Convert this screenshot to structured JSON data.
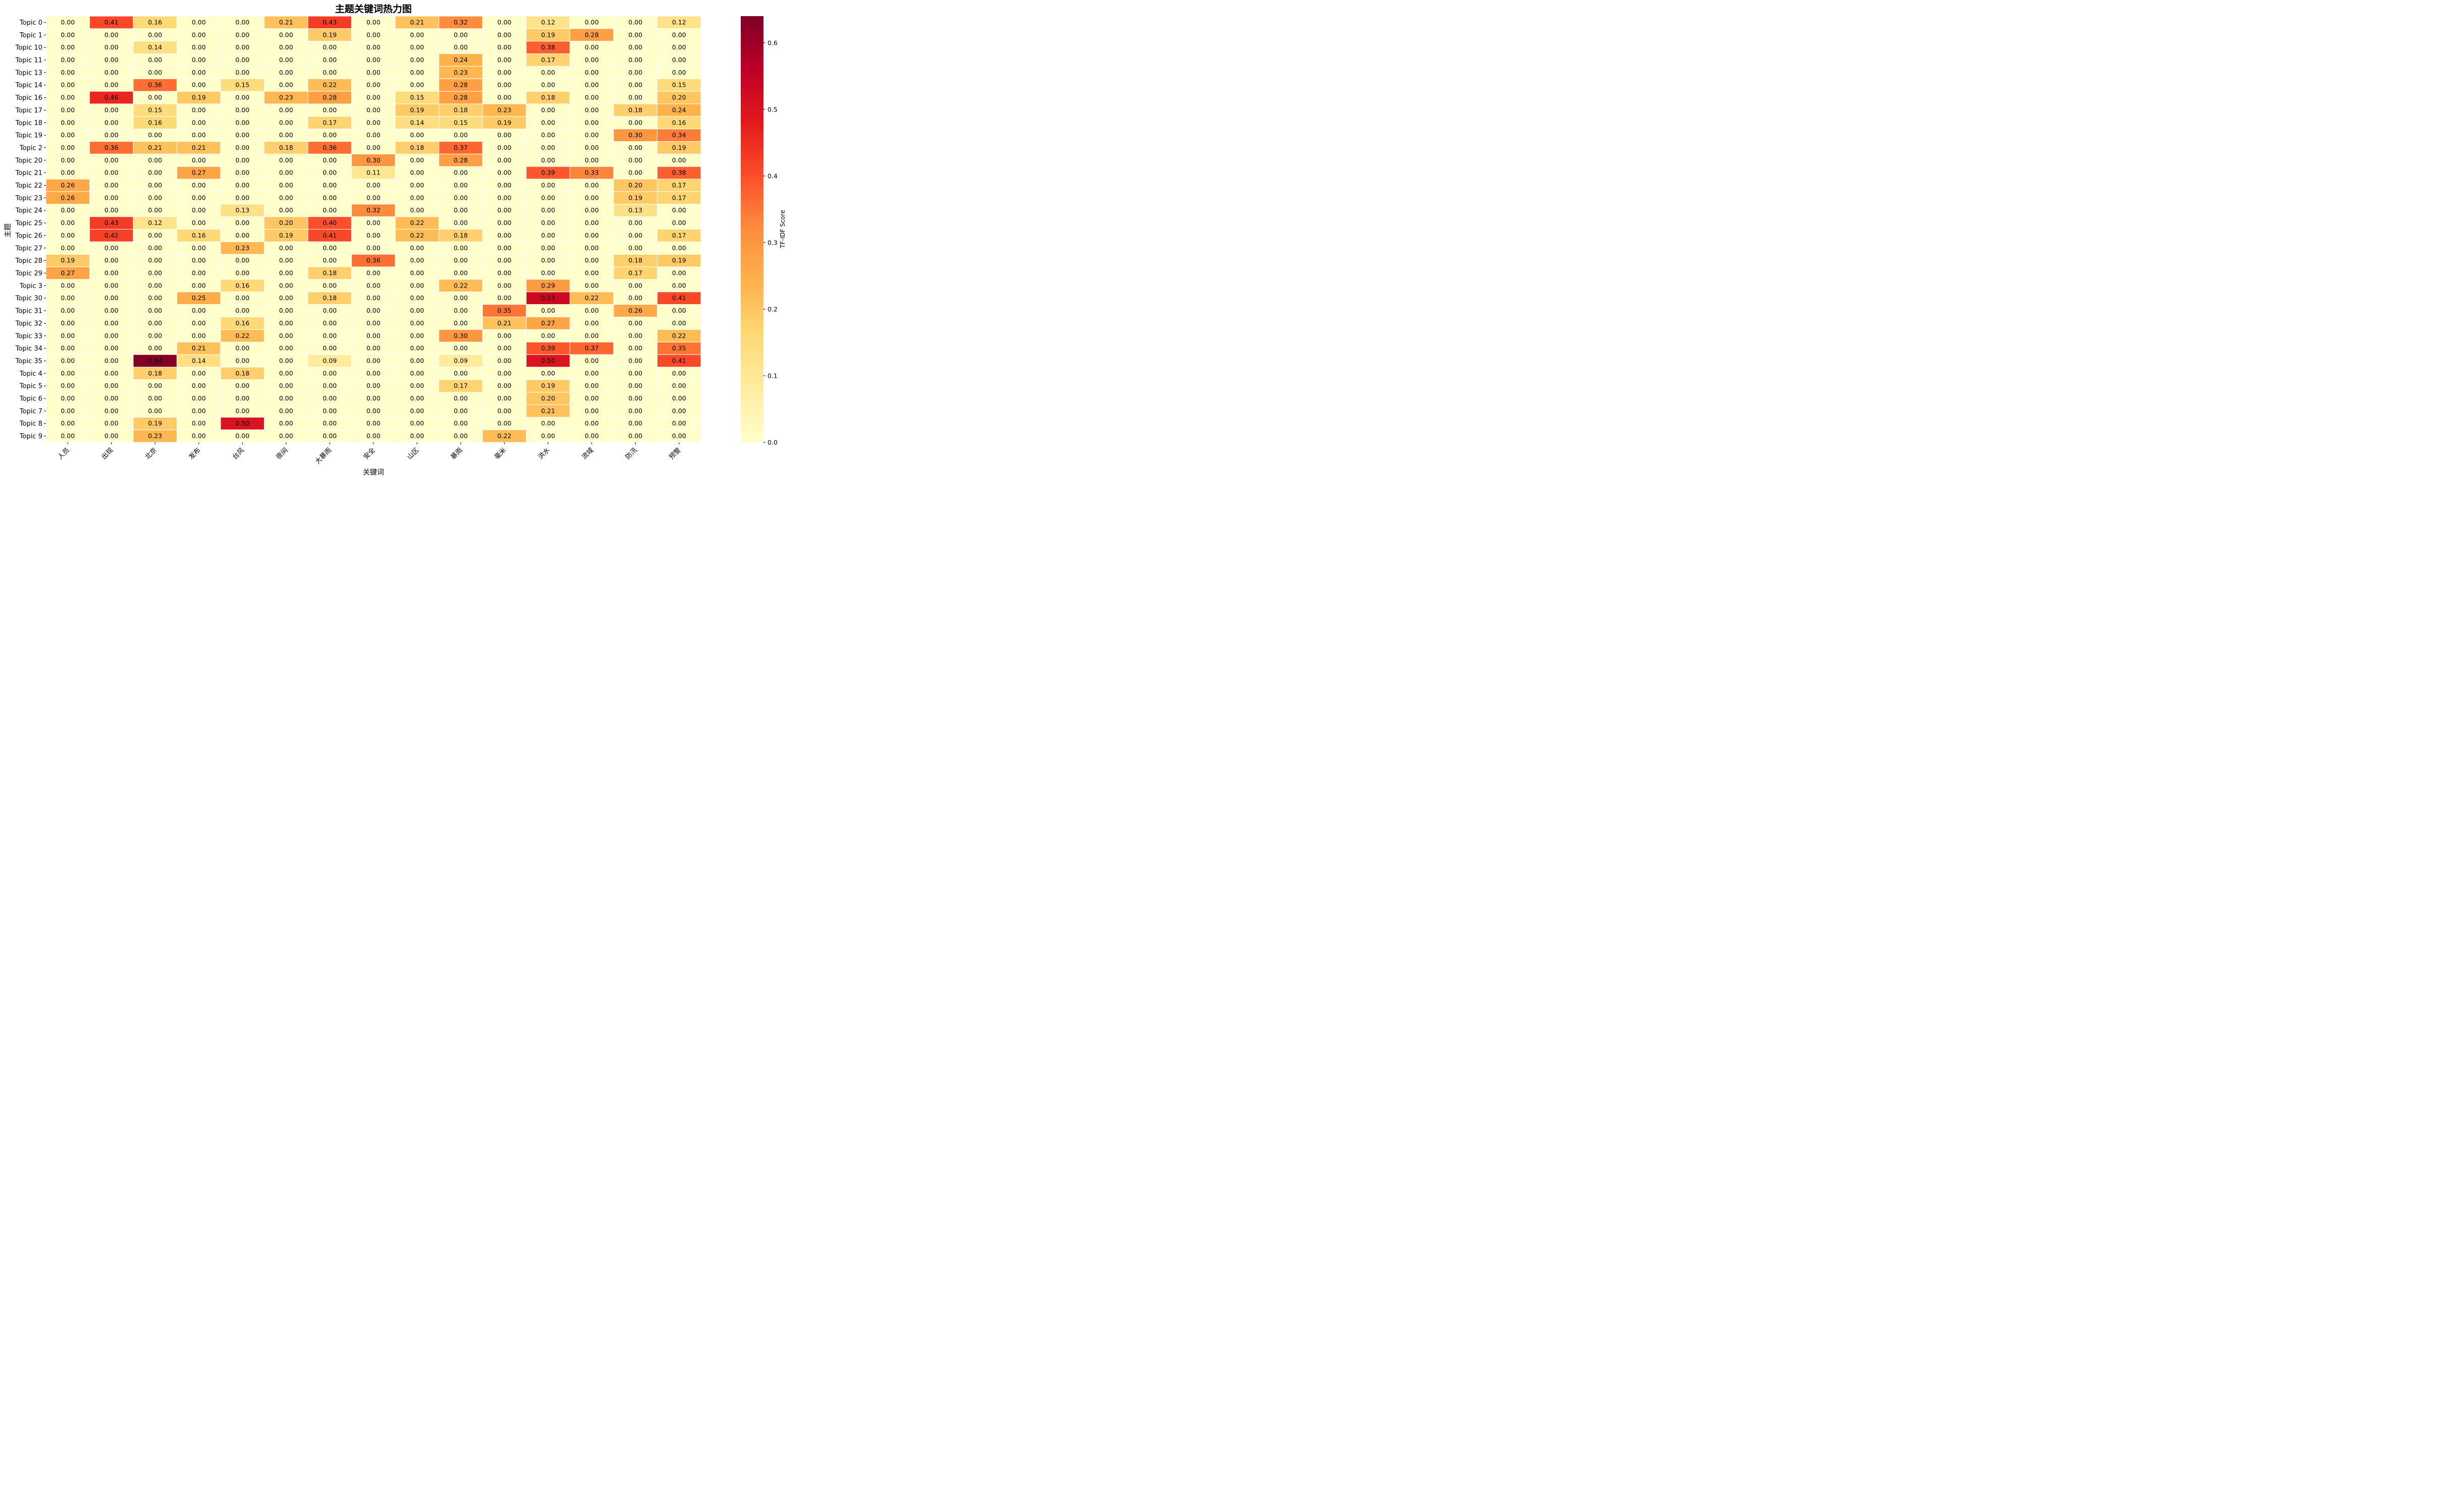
{
  "chart_data": {
    "type": "heatmap",
    "title": "主题关键词热力图",
    "xlabel": "关键词",
    "ylabel": "主题",
    "colorbar_label": "TF-IDF Score",
    "colorbar_ticks": [
      "0.0",
      "0.1",
      "0.2",
      "0.3",
      "0.4",
      "0.5",
      "0.6"
    ],
    "colorbar_range": [
      0,
      0.64
    ],
    "colormap": "YlOrRd",
    "colormap_stops": [
      "#ffffcc",
      "#ffeda0",
      "#fed976",
      "#feb24c",
      "#fd8d3c",
      "#fc4e2a",
      "#e31a1c",
      "#bd0026",
      "#800026"
    ],
    "columns": [
      "人员",
      "出现",
      "北京",
      "发布",
      "台风",
      "夜间",
      "大暴雨",
      "安全",
      "山区",
      "暴雨",
      "毫米",
      "洪水",
      "流域",
      "防汛",
      "预警"
    ],
    "rows": [
      "Topic 0",
      "Topic 1",
      "Topic 10",
      "Topic 11",
      "Topic 13",
      "Topic 14",
      "Topic 16",
      "Topic 17",
      "Topic 18",
      "Topic 19",
      "Topic 2",
      "Topic 20",
      "Topic 21",
      "Topic 22",
      "Topic 23",
      "Topic 24",
      "Topic 25",
      "Topic 26",
      "Topic 27",
      "Topic 28",
      "Topic 29",
      "Topic 3",
      "Topic 30",
      "Topic 31",
      "Topic 32",
      "Topic 33",
      "Topic 34",
      "Topic 35",
      "Topic 4",
      "Topic 5",
      "Topic 6",
      "Topic 7",
      "Topic 8",
      "Topic 9"
    ],
    "values": [
      [
        0.0,
        0.41,
        0.16,
        0.0,
        0.0,
        0.21,
        0.43,
        0.0,
        0.21,
        0.32,
        0.0,
        0.12,
        0.0,
        0.0,
        0.12
      ],
      [
        0.0,
        0.0,
        0.0,
        0.0,
        0.0,
        0.0,
        0.19,
        0.0,
        0.0,
        0.0,
        0.0,
        0.19,
        0.28,
        0.0,
        0.0
      ],
      [
        0.0,
        0.0,
        0.14,
        0.0,
        0.0,
        0.0,
        0.0,
        0.0,
        0.0,
        0.0,
        0.0,
        0.38,
        0.0,
        0.0,
        0.0
      ],
      [
        0.0,
        0.0,
        0.0,
        0.0,
        0.0,
        0.0,
        0.0,
        0.0,
        0.0,
        0.24,
        0.0,
        0.17,
        0.0,
        0.0,
        0.0
      ],
      [
        0.0,
        0.0,
        0.0,
        0.0,
        0.0,
        0.0,
        0.0,
        0.0,
        0.0,
        0.23,
        0.0,
        0.0,
        0.0,
        0.0,
        0.0
      ],
      [
        0.0,
        0.0,
        0.36,
        0.0,
        0.15,
        0.0,
        0.22,
        0.0,
        0.0,
        0.28,
        0.0,
        0.0,
        0.0,
        0.0,
        0.15
      ],
      [
        0.0,
        0.46,
        0.0,
        0.19,
        0.0,
        0.23,
        0.28,
        0.0,
        0.15,
        0.28,
        0.0,
        0.18,
        0.0,
        0.0,
        0.2
      ],
      [
        0.0,
        0.0,
        0.15,
        0.0,
        0.0,
        0.0,
        0.0,
        0.0,
        0.19,
        0.18,
        0.23,
        0.0,
        0.0,
        0.18,
        0.24
      ],
      [
        0.0,
        0.0,
        0.16,
        0.0,
        0.0,
        0.0,
        0.17,
        0.0,
        0.14,
        0.15,
        0.19,
        0.0,
        0.0,
        0.0,
        0.16
      ],
      [
        0.0,
        0.0,
        0.0,
        0.0,
        0.0,
        0.0,
        0.0,
        0.0,
        0.0,
        0.0,
        0.0,
        0.0,
        0.0,
        0.3,
        0.34
      ],
      [
        0.0,
        0.36,
        0.21,
        0.21,
        0.0,
        0.18,
        0.36,
        0.0,
        0.18,
        0.37,
        0.0,
        0.0,
        0.0,
        0.0,
        0.19
      ],
      [
        0.0,
        0.0,
        0.0,
        0.0,
        0.0,
        0.0,
        0.0,
        0.3,
        0.0,
        0.28,
        0.0,
        0.0,
        0.0,
        0.0,
        0.0
      ],
      [
        0.0,
        0.0,
        0.0,
        0.27,
        0.0,
        0.0,
        0.0,
        0.11,
        0.0,
        0.0,
        0.0,
        0.39,
        0.33,
        0.0,
        0.38
      ],
      [
        0.26,
        0.0,
        0.0,
        0.0,
        0.0,
        0.0,
        0.0,
        0.0,
        0.0,
        0.0,
        0.0,
        0.0,
        0.0,
        0.2,
        0.17
      ],
      [
        0.26,
        0.0,
        0.0,
        0.0,
        0.0,
        0.0,
        0.0,
        0.0,
        0.0,
        0.0,
        0.0,
        0.0,
        0.0,
        0.19,
        0.17
      ],
      [
        0.0,
        0.0,
        0.0,
        0.0,
        0.13,
        0.0,
        0.0,
        0.32,
        0.0,
        0.0,
        0.0,
        0.0,
        0.0,
        0.13,
        0.0
      ],
      [
        0.0,
        0.43,
        0.12,
        0.0,
        0.0,
        0.2,
        0.4,
        0.0,
        0.22,
        0.0,
        0.0,
        0.0,
        0.0,
        0.0,
        0.0
      ],
      [
        0.0,
        0.42,
        0.0,
        0.16,
        0.0,
        0.19,
        0.41,
        0.0,
        0.22,
        0.18,
        0.0,
        0.0,
        0.0,
        0.0,
        0.17
      ],
      [
        0.0,
        0.0,
        0.0,
        0.0,
        0.23,
        0.0,
        0.0,
        0.0,
        0.0,
        0.0,
        0.0,
        0.0,
        0.0,
        0.0,
        0.0
      ],
      [
        0.19,
        0.0,
        0.0,
        0.0,
        0.0,
        0.0,
        0.0,
        0.36,
        0.0,
        0.0,
        0.0,
        0.0,
        0.0,
        0.18,
        0.19
      ],
      [
        0.27,
        0.0,
        0.0,
        0.0,
        0.0,
        0.0,
        0.18,
        0.0,
        0.0,
        0.0,
        0.0,
        0.0,
        0.0,
        0.17,
        0.0
      ],
      [
        0.0,
        0.0,
        0.0,
        0.0,
        0.16,
        0.0,
        0.0,
        0.0,
        0.0,
        0.22,
        0.0,
        0.29,
        0.0,
        0.0,
        0.0
      ],
      [
        0.0,
        0.0,
        0.0,
        0.25,
        0.0,
        0.0,
        0.18,
        0.0,
        0.0,
        0.0,
        0.0,
        0.53,
        0.22,
        0.0,
        0.41
      ],
      [
        0.0,
        0.0,
        0.0,
        0.0,
        0.0,
        0.0,
        0.0,
        0.0,
        0.0,
        0.0,
        0.35,
        0.0,
        0.0,
        0.26,
        0.0
      ],
      [
        0.0,
        0.0,
        0.0,
        0.0,
        0.16,
        0.0,
        0.0,
        0.0,
        0.0,
        0.0,
        0.21,
        0.27,
        0.0,
        0.0,
        0.0
      ],
      [
        0.0,
        0.0,
        0.0,
        0.0,
        0.22,
        0.0,
        0.0,
        0.0,
        0.0,
        0.3,
        0.0,
        0.0,
        0.0,
        0.0,
        0.22
      ],
      [
        0.0,
        0.0,
        0.0,
        0.21,
        0.0,
        0.0,
        0.0,
        0.0,
        0.0,
        0.0,
        0.0,
        0.39,
        0.37,
        0.0,
        0.35
      ],
      [
        0.0,
        0.0,
        0.64,
        0.14,
        0.0,
        0.0,
        0.09,
        0.0,
        0.0,
        0.09,
        0.0,
        0.5,
        0.0,
        0.0,
        0.41
      ],
      [
        0.0,
        0.0,
        0.18,
        0.0,
        0.18,
        0.0,
        0.0,
        0.0,
        0.0,
        0.0,
        0.0,
        0.0,
        0.0,
        0.0,
        0.0
      ],
      [
        0.0,
        0.0,
        0.0,
        0.0,
        0.0,
        0.0,
        0.0,
        0.0,
        0.0,
        0.17,
        0.0,
        0.19,
        0.0,
        0.0,
        0.0
      ],
      [
        0.0,
        0.0,
        0.0,
        0.0,
        0.0,
        0.0,
        0.0,
        0.0,
        0.0,
        0.0,
        0.0,
        0.2,
        0.0,
        0.0,
        0.0
      ],
      [
        0.0,
        0.0,
        0.0,
        0.0,
        0.0,
        0.0,
        0.0,
        0.0,
        0.0,
        0.0,
        0.0,
        0.21,
        0.0,
        0.0,
        0.0
      ],
      [
        0.0,
        0.0,
        0.19,
        0.0,
        0.5,
        0.0,
        0.0,
        0.0,
        0.0,
        0.0,
        0.0,
        0.0,
        0.0,
        0.0,
        0.0
      ],
      [
        0.0,
        0.0,
        0.23,
        0.0,
        0.0,
        0.0,
        0.0,
        0.0,
        0.0,
        0.0,
        0.22,
        0.0,
        0.0,
        0.0,
        0.0
      ]
    ]
  }
}
